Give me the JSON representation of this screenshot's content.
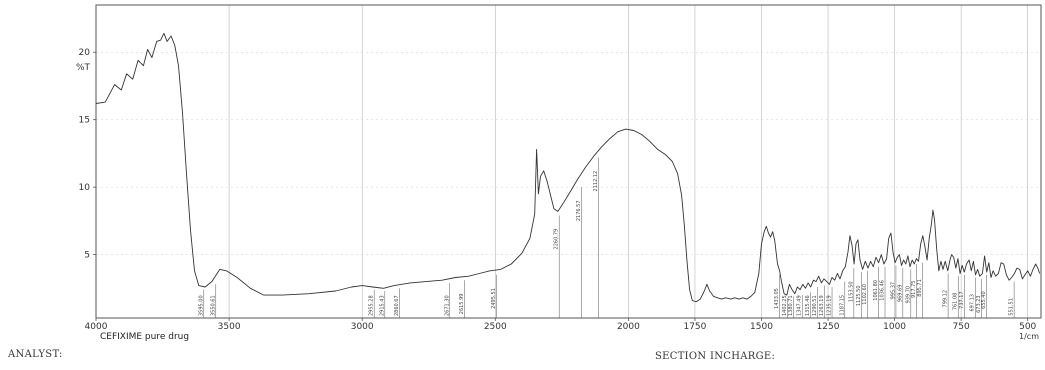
{
  "chart_data": {
    "type": "line",
    "sample_label": "CEFIXIME pure drug",
    "y_axis_label": "%T",
    "x_unit_label": "1/cm",
    "x_ticks": [
      4000,
      3500,
      3000,
      2500,
      2000,
      1750,
      1500,
      1250,
      1000,
      750,
      500
    ],
    "x_tick_labels": [
      "4000",
      "3500",
      "3000",
      "2500",
      "2000",
      "1750",
      "1500",
      "1250",
      "1000",
      "750",
      "500"
    ],
    "y_ticks": [
      5,
      10,
      15,
      20
    ],
    "y_tick_labels": [
      "5",
      "10",
      "15",
      "20"
    ],
    "x_range": [
      4000,
      450
    ],
    "y_range": [
      0.3,
      23.5
    ],
    "grid": true,
    "series": [
      {
        "color": "#333333",
        "points": [
          [
            4000,
            16.2
          ],
          [
            3965,
            16.3
          ],
          [
            3930,
            17.6
          ],
          [
            3905,
            17.2
          ],
          [
            3885,
            18.4
          ],
          [
            3862,
            18.0
          ],
          [
            3842,
            19.4
          ],
          [
            3822,
            19.0
          ],
          [
            3806,
            20.2
          ],
          [
            3790,
            19.6
          ],
          [
            3772,
            20.8
          ],
          [
            3757,
            20.9
          ],
          [
            3745,
            21.4
          ],
          [
            3733,
            20.8
          ],
          [
            3718,
            21.2
          ],
          [
            3704,
            20.5
          ],
          [
            3690,
            19.0
          ],
          [
            3675,
            15.5
          ],
          [
            3660,
            11.0
          ],
          [
            3645,
            6.8
          ],
          [
            3630,
            3.8
          ],
          [
            3614,
            2.7
          ],
          [
            3590,
            2.6
          ],
          [
            3565,
            3.0
          ],
          [
            3535,
            3.9
          ],
          [
            3510,
            3.8
          ],
          [
            3470,
            3.3
          ],
          [
            3420,
            2.5
          ],
          [
            3370,
            2.0
          ],
          [
            3300,
            2.0
          ],
          [
            3200,
            2.1
          ],
          [
            3100,
            2.3
          ],
          [
            3040,
            2.6
          ],
          [
            3000,
            2.7
          ],
          [
            2960,
            2.6
          ],
          [
            2920,
            2.5
          ],
          [
            2880,
            2.7
          ],
          [
            2820,
            2.9
          ],
          [
            2760,
            3.0
          ],
          [
            2700,
            3.1
          ],
          [
            2650,
            3.3
          ],
          [
            2600,
            3.4
          ],
          [
            2560,
            3.6
          ],
          [
            2520,
            3.8
          ],
          [
            2480,
            3.9
          ],
          [
            2440,
            4.3
          ],
          [
            2400,
            5.1
          ],
          [
            2370,
            6.2
          ],
          [
            2352,
            8.0
          ],
          [
            2345,
            12.8
          ],
          [
            2338,
            9.5
          ],
          [
            2330,
            10.8
          ],
          [
            2318,
            11.2
          ],
          [
            2305,
            10.4
          ],
          [
            2290,
            9.2
          ],
          [
            2280,
            8.4
          ],
          [
            2265,
            8.2
          ],
          [
            2245,
            8.8
          ],
          [
            2220,
            9.6
          ],
          [
            2190,
            10.6
          ],
          [
            2160,
            11.5
          ],
          [
            2130,
            12.3
          ],
          [
            2100,
            13.0
          ],
          [
            2070,
            13.6
          ],
          [
            2040,
            14.1
          ],
          [
            2010,
            14.3
          ],
          [
            1980,
            14.2
          ],
          [
            1950,
            13.9
          ],
          [
            1920,
            13.4
          ],
          [
            1890,
            12.8
          ],
          [
            1860,
            12.4
          ],
          [
            1835,
            11.9
          ],
          [
            1815,
            11.0
          ],
          [
            1800,
            9.4
          ],
          [
            1790,
            7.2
          ],
          [
            1780,
            4.5
          ],
          [
            1770,
            2.4
          ],
          [
            1760,
            1.6
          ],
          [
            1745,
            1.5
          ],
          [
            1730,
            1.7
          ],
          [
            1715,
            2.3
          ],
          [
            1705,
            2.8
          ],
          [
            1695,
            2.3
          ],
          [
            1680,
            1.9
          ],
          [
            1665,
            1.8
          ],
          [
            1650,
            1.7
          ],
          [
            1635,
            1.8
          ],
          [
            1615,
            1.7
          ],
          [
            1600,
            1.8
          ],
          [
            1585,
            1.7
          ],
          [
            1570,
            1.8
          ],
          [
            1555,
            1.7
          ],
          [
            1540,
            1.9
          ],
          [
            1525,
            2.2
          ],
          [
            1510,
            3.6
          ],
          [
            1500,
            5.8
          ],
          [
            1490,
            6.7
          ],
          [
            1482,
            7.1
          ],
          [
            1474,
            6.6
          ],
          [
            1466,
            6.3
          ],
          [
            1458,
            6.7
          ],
          [
            1450,
            6.0
          ],
          [
            1440,
            4.3
          ],
          [
            1432,
            3.8
          ],
          [
            1425,
            3.0
          ],
          [
            1415,
            2.1
          ],
          [
            1405,
            2.0
          ],
          [
            1395,
            2.8
          ],
          [
            1385,
            2.4
          ],
          [
            1375,
            2.1
          ],
          [
            1365,
            2.6
          ],
          [
            1355,
            2.4
          ],
          [
            1345,
            2.8
          ],
          [
            1335,
            2.5
          ],
          [
            1325,
            2.9
          ],
          [
            1315,
            2.6
          ],
          [
            1305,
            3.1
          ],
          [
            1295,
            3.0
          ],
          [
            1285,
            3.4
          ],
          [
            1275,
            2.9
          ],
          [
            1265,
            3.2
          ],
          [
            1255,
            3.0
          ],
          [
            1245,
            2.8
          ],
          [
            1235,
            3.3
          ],
          [
            1225,
            3.1
          ],
          [
            1215,
            3.6
          ],
          [
            1205,
            3.2
          ],
          [
            1195,
            3.8
          ],
          [
            1185,
            4.1
          ],
          [
            1175,
            5.2
          ],
          [
            1168,
            6.4
          ],
          [
            1160,
            5.7
          ],
          [
            1152,
            4.3
          ],
          [
            1145,
            5.8
          ],
          [
            1138,
            6.1
          ],
          [
            1130,
            4.6
          ],
          [
            1120,
            3.9
          ],
          [
            1110,
            4.5
          ],
          [
            1100,
            4.0
          ],
          [
            1090,
            4.5
          ],
          [
            1080,
            4.1
          ],
          [
            1070,
            4.8
          ],
          [
            1060,
            4.4
          ],
          [
            1050,
            5.0
          ],
          [
            1040,
            4.3
          ],
          [
            1030,
            4.7
          ],
          [
            1022,
            6.2
          ],
          [
            1014,
            6.6
          ],
          [
            1006,
            5.2
          ],
          [
            998,
            4.4
          ],
          [
            990,
            4.8
          ],
          [
            982,
            5.0
          ],
          [
            974,
            4.2
          ],
          [
            966,
            4.6
          ],
          [
            958,
            4.3
          ],
          [
            950,
            4.9
          ],
          [
            942,
            4.1
          ],
          [
            934,
            4.6
          ],
          [
            926,
            4.3
          ],
          [
            918,
            4.7
          ],
          [
            910,
            4.5
          ],
          [
            902,
            5.8
          ],
          [
            894,
            6.4
          ],
          [
            886,
            5.6
          ],
          [
            878,
            4.6
          ],
          [
            870,
            6.2
          ],
          [
            862,
            7.2
          ],
          [
            856,
            8.3
          ],
          [
            850,
            7.6
          ],
          [
            842,
            5.4
          ],
          [
            834,
            3.8
          ],
          [
            826,
            4.5
          ],
          [
            818,
            3.9
          ],
          [
            810,
            4.5
          ],
          [
            800,
            3.8
          ],
          [
            792,
            4.6
          ],
          [
            786,
            5.0
          ],
          [
            778,
            4.8
          ],
          [
            770,
            4.0
          ],
          [
            762,
            4.7
          ],
          [
            754,
            3.6
          ],
          [
            746,
            4.2
          ],
          [
            738,
            3.7
          ],
          [
            730,
            4.3
          ],
          [
            720,
            4.6
          ],
          [
            712,
            3.8
          ],
          [
            704,
            4.5
          ],
          [
            696,
            3.5
          ],
          [
            688,
            3.9
          ],
          [
            680,
            3.4
          ],
          [
            670,
            3.6
          ],
          [
            662,
            4.9
          ],
          [
            654,
            3.7
          ],
          [
            646,
            4.4
          ],
          [
            638,
            3.3
          ],
          [
            630,
            3.8
          ],
          [
            620,
            3.4
          ],
          [
            610,
            3.6
          ],
          [
            600,
            4.4
          ],
          [
            590,
            4.3
          ],
          [
            580,
            3.5
          ],
          [
            570,
            3.1
          ],
          [
            560,
            3.3
          ],
          [
            550,
            3.6
          ],
          [
            540,
            4.0
          ],
          [
            530,
            3.9
          ],
          [
            520,
            3.2
          ],
          [
            510,
            3.5
          ],
          [
            500,
            3.8
          ],
          [
            490,
            3.4
          ],
          [
            480,
            3.9
          ],
          [
            470,
            4.3
          ],
          [
            462,
            4.0
          ],
          [
            455,
            3.6
          ]
        ]
      }
    ],
    "peak_labels": [
      {
        "x": 3595,
        "y": 2.4,
        "text": "3595.00"
      },
      {
        "x": 3550,
        "y": 2.8,
        "text": "3550.61"
      },
      {
        "x": 2955,
        "y": 2.4,
        "text": "2955.28"
      },
      {
        "x": 2915,
        "y": 2.3,
        "text": "2915.43"
      },
      {
        "x": 2860,
        "y": 2.5,
        "text": "2860.67"
      },
      {
        "x": 2671,
        "y": 2.9,
        "text": "2671.30"
      },
      {
        "x": 2615,
        "y": 3.1,
        "text": "2615.99"
      },
      {
        "x": 2495,
        "y": 3.5,
        "text": "2495.51"
      },
      {
        "x": 2260,
        "y": 7.9,
        "text": "2260.79"
      },
      {
        "x": 2176,
        "y": 10.0,
        "text": "2176.57"
      },
      {
        "x": 2112,
        "y": 12.2,
        "text": "2112.12"
      },
      {
        "x": 1433,
        "y": 3.5,
        "text": "1433.05"
      },
      {
        "x": 1402,
        "y": 1.8,
        "text": "1402.25"
      },
      {
        "x": 1380,
        "y": 1.9,
        "text": "1380.71"
      },
      {
        "x": 1347,
        "y": 2.0,
        "text": "1347.49"
      },
      {
        "x": 1315,
        "y": 2.2,
        "text": "1315.46"
      },
      {
        "x": 1290,
        "y": 2.6,
        "text": "1290.51"
      },
      {
        "x": 1263,
        "y": 2.7,
        "text": "1263.19"
      },
      {
        "x": 1235,
        "y": 2.6,
        "text": "1235.19"
      },
      {
        "x": 1187,
        "y": 3.0,
        "text": "1187.15"
      },
      {
        "x": 1153,
        "y": 4.0,
        "text": "1153.50"
      },
      {
        "x": 1125,
        "y": 3.7,
        "text": "1125.50"
      },
      {
        "x": 1102,
        "y": 3.8,
        "text": "1102.60"
      },
      {
        "x": 1061,
        "y": 4.1,
        "text": "1061.80"
      },
      {
        "x": 1036,
        "y": 4.1,
        "text": "1036.46"
      },
      {
        "x": 995,
        "y": 4.2,
        "text": "995.37"
      },
      {
        "x": 969,
        "y": 4.0,
        "text": "969.69"
      },
      {
        "x": 939,
        "y": 3.9,
        "text": "939.70"
      },
      {
        "x": 917,
        "y": 4.3,
        "text": "917.75"
      },
      {
        "x": 895,
        "y": 4.4,
        "text": "895.71"
      },
      {
        "x": 799,
        "y": 3.6,
        "text": "799.12"
      },
      {
        "x": 761,
        "y": 3.4,
        "text": "761.08"
      },
      {
        "x": 737,
        "y": 3.5,
        "text": "737.17"
      },
      {
        "x": 697,
        "y": 3.3,
        "text": "697.13"
      },
      {
        "x": 673,
        "y": 3.2,
        "text": "673.23"
      },
      {
        "x": 655,
        "y": 3.5,
        "text": "655.40"
      },
      {
        "x": 551,
        "y": 3.0,
        "text": "551.51"
      }
    ]
  },
  "footer": {
    "analyst_label": "ANALYST:",
    "section_label": "SECTION INCHARGE:"
  }
}
